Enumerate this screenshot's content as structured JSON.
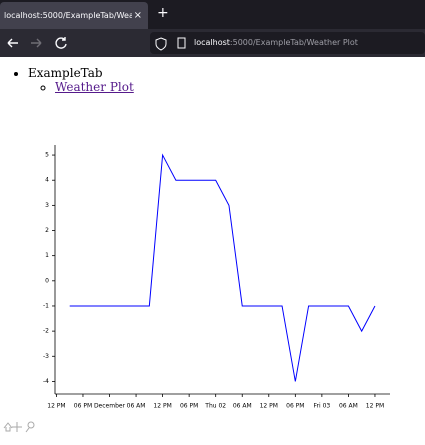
{
  "browser": {
    "tab_title": "localhost:5000/ExampleTab/Weat",
    "url_host": "localhost",
    "url_path": ":5000/ExampleTab/Weather Plot"
  },
  "nav": {
    "item": "ExampleTab",
    "link": "Weather Plot"
  },
  "chart_data": {
    "type": "line",
    "color": "#0000ff",
    "x": [
      15,
      18,
      21,
      24,
      27,
      30,
      33,
      36,
      39,
      42,
      45,
      48,
      51,
      54,
      57,
      60,
      63,
      66,
      69,
      72,
      75,
      78,
      81,
      84
    ],
    "values": [
      -1,
      -1,
      -1,
      -1,
      -1,
      -1,
      -1,
      5,
      4,
      4,
      4,
      4,
      3,
      -1,
      -1,
      -1,
      -1,
      -4,
      -1,
      -1,
      -1,
      -1,
      -2,
      -1
    ],
    "xlim": [
      11,
      87.4
    ],
    "ylim": [
      -4.5,
      5.4
    ],
    "xticks": [
      {
        "value": 12,
        "label": "12 PM"
      },
      {
        "value": 18,
        "label": "06 PM"
      },
      {
        "value": 24,
        "label": "December"
      },
      {
        "value": 30,
        "label": "06 AM"
      },
      {
        "value": 36,
        "label": "12 PM"
      },
      {
        "value": 42,
        "label": "06 PM"
      },
      {
        "value": 48,
        "label": "Thu 02"
      },
      {
        "value": 54,
        "label": "06 AM"
      },
      {
        "value": 60,
        "label": "12 PM"
      },
      {
        "value": 66,
        "label": "06 PM"
      },
      {
        "value": 72,
        "label": "Fri 03"
      },
      {
        "value": 78,
        "label": "06 AM"
      },
      {
        "value": 84,
        "label": "12 PM"
      }
    ],
    "yticks": [
      -4,
      -3,
      -2,
      -1,
      0,
      1,
      2,
      3,
      4,
      5
    ]
  }
}
